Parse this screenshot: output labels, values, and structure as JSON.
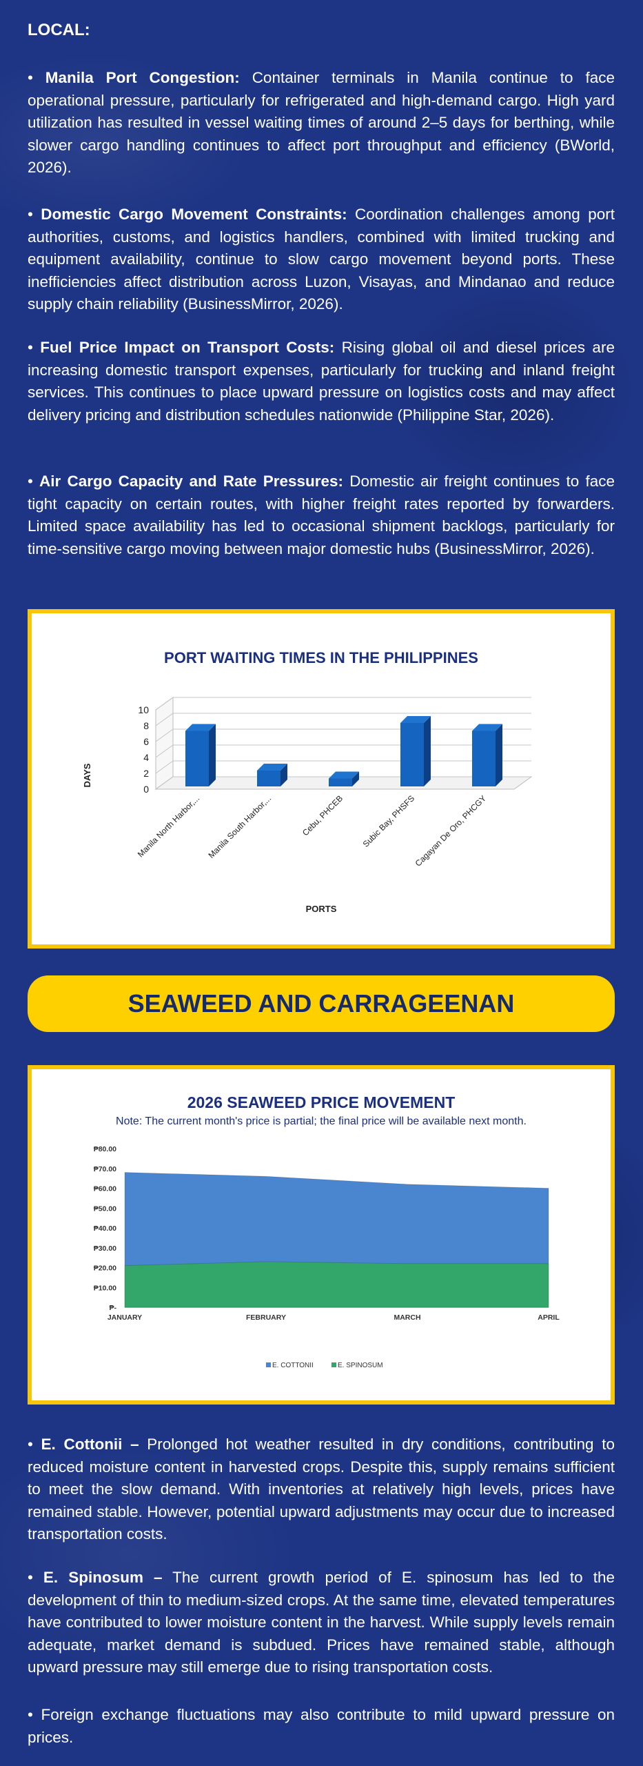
{
  "local": {
    "heading": "LOCAL:",
    "items": [
      {
        "title": "Manila Port Congestion:",
        "text": "Container terminals in Manila continue to face operational pressure, particularly for refrigerated and high-demand cargo. High yard utilization has resulted in vessel waiting times of around 2–5 days for berthing, while slower cargo handling continues to affect port throughput and efficiency (BWorld, 2026)."
      },
      {
        "title": "Domestic Cargo Movement Constraints:",
        "text": "Coordination challenges among port authorities, customs, and logistics handlers, combined with limited trucking and equipment availability, continue to slow cargo movement beyond ports. These inefficiencies affect distribution across Luzon, Visayas, and Mindanao and reduce supply chain reliability (BusinessMirror, 2026)."
      },
      {
        "title": "Fuel Price Impact on Transport Costs:",
        "text": "Rising global oil and diesel prices are increasing domestic transport expenses, particularly for trucking and inland freight services. This continues to place upward pressure on logistics costs and may affect delivery pricing and distribution schedules nationwide (Philippine Star, 2026)."
      },
      {
        "title": "Air Cargo Capacity and Rate Pressures:",
        "text": "Domestic air freight continues to face tight capacity on certain routes, with higher freight rates reported by forwarders. Limited space availability has led to occasional shipment backlogs, particularly for time-sensitive cargo moving between major domestic hubs (BusinessMirror, 2026)."
      }
    ]
  },
  "port_chart": {
    "title": "PORT WAITING TIMES IN THE PHILIPPINES",
    "xlabel": "PORTS",
    "ylabel": "DAYS"
  },
  "banner": {
    "label": "SEAWEED AND CARRAGEENAN"
  },
  "price_chart": {
    "title": "2026 SEAWEED PRICE MOVEMENT",
    "note": "Note: The current month's price is partial; the final price will be available next month."
  },
  "seaweed": {
    "items": [
      {
        "title": "E. Cottonii –",
        "text": "Prolonged hot weather resulted in dry conditions, contributing to reduced moisture content in harvested crops. Despite this, supply remains sufficient to meet the slow demand. With inventories at relatively high levels, prices have remained stable. However, potential upward adjustments may occur due to increased transportation costs."
      },
      {
        "title": "E. Spinosum –",
        "text": "The current growth period of E. spinosum has led to the development of thin to medium-sized crops. At the same time, elevated temperatures have contributed to lower moisture content in the harvest. While supply levels remain adequate, market demand is subdued. Prices have remained stable, although upward pressure may still emerge due to rising transportation costs."
      },
      {
        "title": "",
        "text": "Foreign exchange fluctuations may also contribute to mild upward pressure on prices."
      }
    ]
  },
  "chart_data": [
    {
      "type": "bar",
      "title": "PORT WAITING TIMES IN THE PHILIPPINES",
      "xlabel": "PORTS",
      "ylabel": "DAYS",
      "categories": [
        "Manila North Harbor,...",
        "Manila South Harbor,...",
        "Cebu, PHCEB",
        "Subic Bay, PHSFS",
        "Cagayan De Oro, PHCGY"
      ],
      "values": [
        7,
        2,
        1,
        8,
        7
      ],
      "ylim": [
        0,
        10
      ],
      "yticks": [
        "0",
        "2",
        "4",
        "6",
        "8",
        "10"
      ],
      "color": "#1565c0",
      "grid": true
    },
    {
      "type": "area",
      "title": "2026 SEAWEED PRICE MOVEMENT",
      "categories": [
        "JANUARY",
        "FEBRUARY",
        "MARCH",
        "APRIL"
      ],
      "series": [
        {
          "name": "E. COTTONII",
          "values": [
            68,
            66,
            62,
            60
          ],
          "color": "#4a86d0"
        },
        {
          "name": "E. SPINOSUM",
          "values": [
            21,
            23,
            22,
            22
          ],
          "color": "#33a66a"
        }
      ],
      "ylim": [
        0,
        80
      ],
      "yticks": [
        "₱-",
        "₱10.00",
        "₱20.00",
        "₱30.00",
        "₱40.00",
        "₱50.00",
        "₱60.00",
        "₱70.00",
        "₱80.00"
      ],
      "legend": "bottom"
    }
  ]
}
